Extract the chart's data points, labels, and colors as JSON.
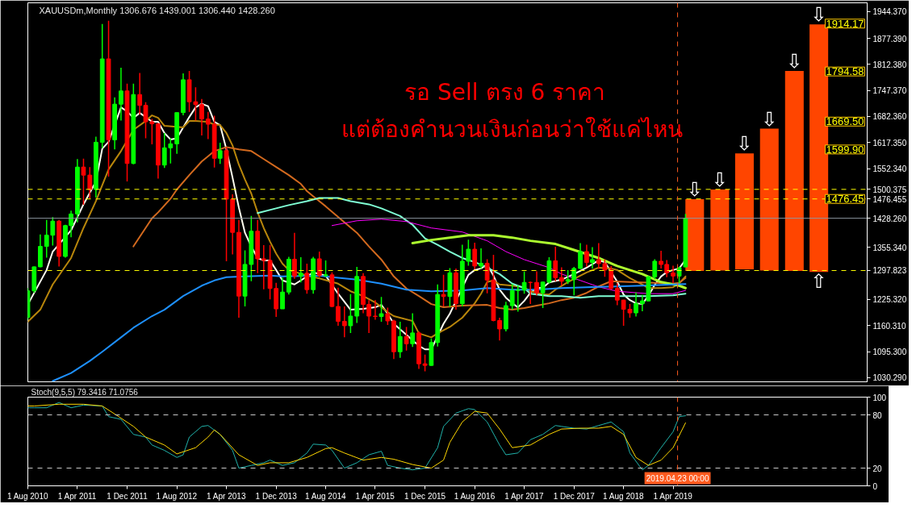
{
  "chart_data": [
    {
      "type": "candlestick",
      "title": "XAUUSDm,Monthly 1306.676 1439.001 1306.440 1428.260",
      "annotations": [
        "รอ Sell ตรง  6  ราคา",
        "แต่ต้องคำนวนเงินก่อนว่าใช้แค่ไหน",
        {
          "text": "⇩",
          "x": "2019-07-16",
          "y": 1476
        },
        {
          "text": "⇩",
          "x": "2019-11-16",
          "y": 1500
        },
        {
          "text": "⇩",
          "x": "2020-03-16",
          "y": 1590
        },
        {
          "text": "⇩",
          "x": "2020-07-16",
          "y": 1652
        },
        {
          "text": "⇩",
          "x": "2020-11-16",
          "y": 1796
        },
        {
          "text": "⇩",
          "x": "2021-03-16",
          "y": 1912
        },
        {
          "text": "⇧",
          "x": "2021-03-16",
          "y": 1294
        },
        {
          "text": "1914.17",
          "x": "2021-04-16",
          "y": 1914.17
        },
        {
          "text": "1794.58",
          "x": "2021-04-16",
          "y": 1794.58
        },
        {
          "text": "1669.50",
          "x": "2021-04-16",
          "y": 1669.5
        },
        {
          "text": "1599.90",
          "x": "2021-04-16",
          "y": 1599.9
        },
        {
          "text": "1476.45",
          "x": "2021-04-16",
          "y": 1476.45
        }
      ],
      "x": [
        "2010-08",
        "2010-09",
        "2010-10",
        "2010-11",
        "2010-12",
        "2011-01",
        "2011-02",
        "2011-03",
        "2011-04",
        "2011-05",
        "2011-06",
        "2011-07",
        "2011-08",
        "2011-09",
        "2011-10",
        "2011-11",
        "2011-12",
        "2012-01",
        "2012-02",
        "2012-03",
        "2012-04",
        "2012-05",
        "2012-06",
        "2012-07",
        "2012-08",
        "2012-09",
        "2012-10",
        "2012-11",
        "2012-12",
        "2013-01",
        "2013-02",
        "2013-03",
        "2013-04",
        "2013-05",
        "2013-06",
        "2013-07",
        "2013-08",
        "2013-09",
        "2013-10",
        "2013-11",
        "2013-12",
        "2014-01",
        "2014-02",
        "2014-03",
        "2014-04",
        "2014-05",
        "2014-06",
        "2014-07",
        "2014-08",
        "2014-09",
        "2014-10",
        "2014-11",
        "2014-12",
        "2015-01",
        "2015-02",
        "2015-03",
        "2015-04",
        "2015-05",
        "2015-06",
        "2015-07",
        "2015-08",
        "2015-09",
        "2015-10",
        "2015-11",
        "2015-12",
        "2016-01",
        "2016-02",
        "2016-03",
        "2016-04",
        "2016-05",
        "2016-06",
        "2016-07",
        "2016-08",
        "2016-09",
        "2016-10",
        "2016-11",
        "2016-12",
        "2017-01",
        "2017-02",
        "2017-03",
        "2017-04",
        "2017-05",
        "2017-06",
        "2017-07",
        "2017-08",
        "2017-09",
        "2017-10",
        "2017-11",
        "2017-12",
        "2018-01",
        "2018-02",
        "2018-03",
        "2018-04",
        "2018-05",
        "2018-06",
        "2018-07",
        "2018-08",
        "2018-09",
        "2018-10",
        "2018-11",
        "2018-12",
        "2019-01",
        "2019-02",
        "2019-03",
        "2019-04",
        "2019-05",
        "2019-06"
      ],
      "ohlc": [
        [
          1181,
          1254,
          1175,
          1247
        ],
        [
          1247,
          1308,
          1242,
          1307
        ],
        [
          1307,
          1388,
          1306,
          1358
        ],
        [
          1358,
          1424,
          1330,
          1386
        ],
        [
          1386,
          1431,
          1360,
          1421
        ],
        [
          1421,
          1424,
          1308,
          1333
        ],
        [
          1333,
          1412,
          1330,
          1410
        ],
        [
          1410,
          1447,
          1381,
          1439
        ],
        [
          1439,
          1576,
          1418,
          1556
        ],
        [
          1556,
          1577,
          1462,
          1536
        ],
        [
          1536,
          1556,
          1478,
          1500
        ],
        [
          1500,
          1632,
          1480,
          1618
        ],
        [
          1618,
          1913,
          1603,
          1826
        ],
        [
          1826,
          1921,
          1532,
          1624
        ],
        [
          1624,
          1730,
          1600,
          1713
        ],
        [
          1713,
          1804,
          1672,
          1746
        ],
        [
          1746,
          1764,
          1520,
          1565
        ],
        [
          1565,
          1764,
          1563,
          1737
        ],
        [
          1737,
          1791,
          1687,
          1710
        ],
        [
          1710,
          1718,
          1628,
          1669
        ],
        [
          1669,
          1676,
          1613,
          1664
        ],
        [
          1664,
          1666,
          1527,
          1561
        ],
        [
          1561,
          1641,
          1554,
          1604
        ],
        [
          1604,
          1628,
          1565,
          1614
        ],
        [
          1614,
          1692,
          1589,
          1692
        ],
        [
          1692,
          1790,
          1685,
          1774
        ],
        [
          1774,
          1796,
          1694,
          1719
        ],
        [
          1719,
          1755,
          1672,
          1712
        ],
        [
          1712,
          1726,
          1635,
          1676
        ],
        [
          1676,
          1694,
          1626,
          1663
        ],
        [
          1663,
          1684,
          1555,
          1578
        ],
        [
          1578,
          1617,
          1564,
          1597
        ],
        [
          1597,
          1605,
          1321,
          1476
        ],
        [
          1476,
          1488,
          1338,
          1393
        ],
        [
          1393,
          1424,
          1180,
          1234
        ],
        [
          1234,
          1348,
          1208,
          1313
        ],
        [
          1313,
          1434,
          1271,
          1396
        ],
        [
          1396,
          1424,
          1291,
          1327
        ],
        [
          1327,
          1361,
          1251,
          1323
        ],
        [
          1323,
          1361,
          1226,
          1253
        ],
        [
          1253,
          1267,
          1182,
          1202
        ],
        [
          1202,
          1280,
          1202,
          1244
        ],
        [
          1244,
          1332,
          1238,
          1326
        ],
        [
          1326,
          1392,
          1277,
          1284
        ],
        [
          1284,
          1331,
          1268,
          1291
        ],
        [
          1291,
          1315,
          1240,
          1250
        ],
        [
          1250,
          1332,
          1240,
          1327
        ],
        [
          1327,
          1345,
          1281,
          1285
        ],
        [
          1285,
          1323,
          1281,
          1287
        ],
        [
          1287,
          1293,
          1206,
          1208
        ],
        [
          1208,
          1255,
          1160,
          1171
        ],
        [
          1171,
          1208,
          1131,
          1160
        ],
        [
          1160,
          1239,
          1142,
          1184
        ],
        [
          1184,
          1307,
          1167,
          1283
        ],
        [
          1283,
          1291,
          1191,
          1213
        ],
        [
          1213,
          1224,
          1142,
          1184
        ],
        [
          1184,
          1224,
          1175,
          1183
        ],
        [
          1183,
          1232,
          1170,
          1190
        ],
        [
          1190,
          1205,
          1162,
          1172
        ],
        [
          1172,
          1175,
          1077,
          1095
        ],
        [
          1095,
          1170,
          1080,
          1133
        ],
        [
          1133,
          1157,
          1098,
          1115
        ],
        [
          1115,
          1191,
          1107,
          1142
        ],
        [
          1142,
          1146,
          1052,
          1065
        ],
        [
          1065,
          1088,
          1046,
          1061
        ],
        [
          1061,
          1128,
          1060,
          1118
        ],
        [
          1118,
          1263,
          1108,
          1238
        ],
        [
          1238,
          1287,
          1208,
          1233
        ],
        [
          1233,
          1304,
          1207,
          1292
        ],
        [
          1292,
          1303,
          1200,
          1215
        ],
        [
          1215,
          1362,
          1208,
          1321
        ],
        [
          1321,
          1375,
          1310,
          1351
        ],
        [
          1351,
          1367,
          1301,
          1309
        ],
        [
          1309,
          1353,
          1302,
          1316
        ],
        [
          1316,
          1326,
          1241,
          1274
        ],
        [
          1274,
          1337,
          1171,
          1173
        ],
        [
          1173,
          1180,
          1123,
          1152
        ],
        [
          1152,
          1220,
          1146,
          1210
        ],
        [
          1210,
          1264,
          1200,
          1248
        ],
        [
          1248,
          1261,
          1195,
          1249
        ],
        [
          1249,
          1295,
          1240,
          1268
        ],
        [
          1268,
          1270,
          1214,
          1268
        ],
        [
          1268,
          1296,
          1236,
          1242
        ],
        [
          1242,
          1270,
          1204,
          1269
        ],
        [
          1269,
          1331,
          1265,
          1322
        ],
        [
          1322,
          1357,
          1271,
          1280
        ],
        [
          1280,
          1306,
          1260,
          1271
        ],
        [
          1271,
          1299,
          1264,
          1275
        ],
        [
          1275,
          1307,
          1236,
          1303
        ],
        [
          1303,
          1366,
          1302,
          1345
        ],
        [
          1345,
          1362,
          1307,
          1318
        ],
        [
          1318,
          1356,
          1303,
          1325
        ],
        [
          1325,
          1366,
          1302,
          1315
        ],
        [
          1315,
          1326,
          1282,
          1299
        ],
        [
          1299,
          1309,
          1250,
          1253
        ],
        [
          1253,
          1266,
          1211,
          1224
        ],
        [
          1224,
          1225,
          1160,
          1201
        ],
        [
          1201,
          1214,
          1180,
          1192
        ],
        [
          1192,
          1243,
          1183,
          1215
        ],
        [
          1215,
          1237,
          1196,
          1222
        ],
        [
          1222,
          1284,
          1221,
          1282
        ],
        [
          1282,
          1326,
          1276,
          1321
        ],
        [
          1321,
          1347,
          1303,
          1313
        ],
        [
          1313,
          1324,
          1281,
          1292
        ],
        [
          1292,
          1310,
          1266,
          1284
        ],
        [
          1284,
          1306,
          1266,
          1305
        ],
        [
          1306.676,
          1439.001,
          1306.44,
          1428.26
        ]
      ],
      "colors": [
        "#00ff00",
        "#00ff00",
        "#00ff00",
        "#00ff00",
        "#00ff00",
        "#ff0000",
        "#00ff00",
        "#00ff00",
        "#00ff00",
        "#ff0000",
        "#ff0000",
        "#00ff00",
        "#00ff00",
        "#ff0000",
        "#00ff00",
        "#00ff00",
        "#ff0000",
        "#00ff00",
        "#ff0000",
        "#ff0000",
        "#ff0000",
        "#ff0000",
        "#00ff00",
        "#00ff00",
        "#00ff00",
        "#00ff00",
        "#ff0000",
        "#ff0000",
        "#ff0000",
        "#ff0000",
        "#ff0000",
        "#00ff00",
        "#ff0000",
        "#ff0000",
        "#ff0000",
        "#00ff00",
        "#00ff00",
        "#ff0000",
        "#ff0000",
        "#ff0000",
        "#ff0000",
        "#00ff00",
        "#00ff00",
        "#ff0000",
        "#00ff00",
        "#ff0000",
        "#00ff00",
        "#ff0000",
        "#00ff00",
        "#ff0000",
        "#ff0000",
        "#ff0000",
        "#00ff00",
        "#00ff00",
        "#ff0000",
        "#ff0000",
        "#ff0000",
        "#00ff00",
        "#ff0000",
        "#ff0000",
        "#00ff00",
        "#ff0000",
        "#00ff00",
        "#ff0000",
        "#ff0000",
        "#00ff00",
        "#00ff00",
        "#ff0000",
        "#00ff00",
        "#ff0000",
        "#00ff00",
        "#00ff00",
        "#ff0000",
        "#00ff00",
        "#ff0000",
        "#ff0000",
        "#ff0000",
        "#00ff00",
        "#00ff00",
        "#00ff00",
        "#00ff00",
        "#ff0000",
        "#ff0000",
        "#00ff00",
        "#00ff00",
        "#ff0000",
        "#ff0000",
        "#00ff00",
        "#00ff00",
        "#00ff00",
        "#ff0000",
        "#00ff00",
        "#ff0000",
        "#ff0000",
        "#ff0000",
        "#ff0000",
        "#ff0000",
        "#ff0000",
        "#00ff00",
        "#00ff00",
        "#00ff00",
        "#00ff00",
        "#ff0000",
        "#ff0000",
        "#ff0000",
        "#00ff00",
        "#00ff00"
      ],
      "series": [
        {
          "type": "line",
          "color": "#fffff0",
          "x": [
            "2010-08",
            "2010-11",
            "2010-12",
            "2011-03",
            "2011-05",
            "2011-07",
            "2011-08",
            "2011-09",
            "2011-11",
            "2011-12",
            "2012-01",
            "2012-02",
            "2012-03",
            "2012-04",
            "2012-05",
            "2012-06",
            "2012-07",
            "2012-08",
            "2012-09",
            "2012-10",
            "2012-11",
            "2012-12",
            "2013-01",
            "2013-02",
            "2013-03",
            "2013-04",
            "2013-05",
            "2013-06",
            "2013-07",
            "2013-08",
            "2013-09",
            "2013-10",
            "2013-11",
            "2013-12",
            "2014-01",
            "2014-03",
            "2014-05",
            "2014-06",
            "2014-08",
            "2014-10",
            "2014-12",
            "2015-02",
            "2015-04",
            "2015-05",
            "2015-06",
            "2015-07",
            "2015-09",
            "2015-11",
            "2015-12",
            "2016-01",
            "2016-03",
            "2016-04",
            "2016-05",
            "2016-07",
            "2016-08",
            "2016-09",
            "2016-10",
            "2016-11",
            "2016-12",
            "2017-01",
            "2017-02",
            "2017-03",
            "2017-04",
            "2017-05",
            "2017-06",
            "2017-07",
            "2017-08",
            "2017-10",
            "2017-12",
            "2018-02",
            "2018-04",
            "2018-05",
            "2018-07",
            "2018-08",
            "2018-09",
            "2018-10",
            "2018-11",
            "2018-12",
            "2019-01",
            "2019-02",
            "2019-03",
            "2019-04",
            "2019-05",
            "2019-06"
          ],
          "values": [
            1213,
            1299,
            1345,
            1398,
            1463,
            1520,
            1602,
            1619,
            1705,
            1695,
            1679,
            1691,
            1681,
            1669,
            1669,
            1641,
            1625,
            1628,
            1655,
            1681,
            1705,
            1714,
            1708,
            1669,
            1661,
            1600,
            1530,
            1455,
            1392,
            1358,
            1329,
            1323,
            1323,
            1299,
            1273,
            1263,
            1283,
            1293,
            1285,
            1240,
            1200,
            1202,
            1206,
            1212,
            1190,
            1165,
            1137,
            1110,
            1101,
            1101,
            1165,
            1190,
            1222,
            1287,
            1299,
            1303,
            1313,
            1285,
            1250,
            1230,
            1216,
            1206,
            1222,
            1242,
            1254,
            1255,
            1268,
            1275,
            1289,
            1305,
            1323,
            1319,
            1270,
            1238,
            1224,
            1216,
            1214,
            1235,
            1262,
            1283,
            1294,
            1299,
            1303,
            1325
          ]
        },
        {
          "type": "line",
          "color": "#b8860b",
          "x": [
            "2010-08",
            "2010-10",
            "2010-12",
            "2011-03",
            "2011-05",
            "2011-07",
            "2011-08",
            "2011-09",
            "2011-11",
            "2012-01",
            "2012-03",
            "2012-04",
            "2012-05",
            "2012-06",
            "2012-09",
            "2012-10",
            "2012-11",
            "2013-01",
            "2013-02",
            "2013-03",
            "2013-04",
            "2013-05",
            "2013-06",
            "2013-07",
            "2013-08",
            "2013-09",
            "2013-10",
            "2013-11",
            "2013-12",
            "2014-01",
            "2014-02",
            "2014-04",
            "2014-05",
            "2014-07",
            "2014-10",
            "2014-12",
            "2015-02",
            "2015-04",
            "2015-06",
            "2015-07",
            "2015-10",
            "2015-11",
            "2016-01",
            "2016-02",
            "2016-04",
            "2016-06",
            "2016-08",
            "2016-09",
            "2016-10",
            "2016-11",
            "2016-12",
            "2017-02",
            "2017-04",
            "2017-05",
            "2017-07",
            "2017-08",
            "2017-09",
            "2017-11",
            "2018-01",
            "2018-02",
            "2018-04",
            "2018-06",
            "2018-07",
            "2018-09",
            "2018-11",
            "2018-12",
            "2019-02",
            "2019-04",
            "2019-05",
            "2019-06"
          ],
          "values": [
            1170,
            1200,
            1263,
            1329,
            1404,
            1471,
            1511,
            1550,
            1596,
            1649,
            1671,
            1685,
            1679,
            1659,
            1655,
            1671,
            1671,
            1669,
            1662,
            1661,
            1641,
            1610,
            1562,
            1525,
            1490,
            1443,
            1404,
            1370,
            1340,
            1315,
            1299,
            1290,
            1285,
            1278,
            1265,
            1246,
            1234,
            1218,
            1194,
            1184,
            1172,
            1141,
            1131,
            1141,
            1157,
            1180,
            1216,
            1240,
            1269,
            1273,
            1263,
            1260,
            1256,
            1246,
            1238,
            1238,
            1250,
            1269,
            1285,
            1293,
            1305,
            1303,
            1299,
            1279,
            1263,
            1254,
            1254,
            1256,
            1266,
            1283
          ]
        },
        {
          "type": "line",
          "color": "#d2691e",
          "x": [
            "2012-01",
            "2012-04",
            "2012-05",
            "2012-07",
            "2012-08",
            "2012-10",
            "2012-12",
            "2013-02",
            "2013-04",
            "2013-06",
            "2013-08",
            "2013-10",
            "2013-12",
            "2014-02",
            "2014-04",
            "2014-05",
            "2014-06",
            "2014-08",
            "2014-11",
            "2015-01",
            "2015-03",
            "2015-05",
            "2015-07",
            "2015-09",
            "2015-11",
            "2016-01",
            "2016-03",
            "2016-06",
            "2016-10",
            "2016-12",
            "2017-02",
            "2017-04",
            "2017-06",
            "2017-08",
            "2017-10",
            "2017-12",
            "2018-02",
            "2018-04",
            "2018-06",
            "2018-09",
            "2019-01",
            "2019-04",
            "2019-05",
            "2019-06"
          ],
          "values": [
            1358,
            1428,
            1443,
            1477,
            1500,
            1536,
            1570,
            1596,
            1606,
            1600,
            1596,
            1576,
            1556,
            1536,
            1514,
            1496,
            1483,
            1458,
            1418,
            1392,
            1358,
            1325,
            1283,
            1253,
            1234,
            1214,
            1206,
            1210,
            1212,
            1204,
            1200,
            1204,
            1210,
            1216,
            1224,
            1230,
            1242,
            1258,
            1271,
            1269,
            1267,
            1265,
            1267,
            1279
          ]
        },
        {
          "type": "line",
          "color": "#7fffd4",
          "x": [
            "2013-09",
            "2013-12",
            "2014-02",
            "2014-05",
            "2014-07",
            "2014-10",
            "2014-12",
            "2015-03",
            "2015-05",
            "2015-08",
            "2015-10",
            "2015-12",
            "2016-02",
            "2016-04",
            "2016-06",
            "2016-08",
            "2016-10",
            "2016-12",
            "2017-02",
            "2017-04",
            "2017-05",
            "2017-08",
            "2017-10",
            "2018-01",
            "2018-04",
            "2018-08",
            "2018-12",
            "2019-04",
            "2019-06"
          ],
          "values": [
            1441,
            1453,
            1461,
            1471,
            1479,
            1479,
            1471,
            1463,
            1453,
            1434,
            1412,
            1378,
            1362,
            1345,
            1329,
            1319,
            1305,
            1289,
            1265,
            1254,
            1240,
            1234,
            1234,
            1230,
            1234,
            1234,
            1234,
            1236,
            1240
          ]
        },
        {
          "type": "line",
          "color": "#ff00ff",
          "x": [
            "2014-09",
            "2015-01",
            "2015-05",
            "2015-09",
            "2016-01",
            "2016-06",
            "2016-10",
            "2017-01",
            "2017-04",
            "2017-08",
            "2017-10",
            "2018-01",
            "2018-04",
            "2018-07",
            "2018-12",
            "2019-04",
            "2019-06"
          ],
          "values": [
            1410,
            1422,
            1426,
            1420,
            1404,
            1394,
            1372,
            1345,
            1325,
            1305,
            1289,
            1273,
            1257,
            1246,
            1240,
            1240,
            1248
          ]
        },
        {
          "type": "line",
          "color": "#adff2f",
          "x": [
            "2015-10",
            "2016-01",
            "2016-05",
            "2016-07",
            "2016-11",
            "2017-02",
            "2017-05",
            "2017-09",
            "2017-12",
            "2018-04",
            "2018-07",
            "2018-11",
            "2019-02",
            "2019-05",
            "2019-06"
          ],
          "values": [
            1366,
            1374,
            1382,
            1386,
            1386,
            1380,
            1372,
            1364,
            1349,
            1329,
            1309,
            1289,
            1269,
            1260,
            1254
          ]
        },
        {
          "type": "line",
          "color": "#1e90ff",
          "x": [
            "2010-12",
            "2011-03",
            "2011-06",
            "2011-08",
            "2011-11",
            "2012-01",
            "2012-04",
            "2012-06",
            "2012-09",
            "2012-12",
            "2013-02",
            "2013-04",
            "2013-07",
            "2013-11",
            "2014-01",
            "2014-07",
            "2014-09",
            "2015-01",
            "2015-05",
            "2015-09",
            "2016-01",
            "2016-06",
            "2016-10",
            "2017-02",
            "2017-06",
            "2017-10",
            "2018-04",
            "2018-11",
            "2019-06"
          ],
          "values": [
            1022,
            1042,
            1072,
            1095,
            1131,
            1155,
            1184,
            1200,
            1234,
            1260,
            1273,
            1281,
            1283,
            1285,
            1283,
            1285,
            1281,
            1275,
            1265,
            1250,
            1246,
            1248,
            1254,
            1250,
            1250,
            1254,
            1257,
            1260,
            1264
          ]
        },
        {
          "type": "bar",
          "color": "#ff4500",
          "x": [
            "2019-07-16",
            "2019-11-16",
            "2020-03-16",
            "2020-07-16",
            "2020-11-16",
            "2021-03-16"
          ],
          "base": [
            1297,
            1298,
            1301,
            1298,
            1297,
            1294
          ],
          "values": [
            179,
            202,
            289,
            354,
            499,
            618
          ]
        }
      ],
      "xlim": [
        "2010-08",
        "2021-11-08"
      ],
      "ylim": [
        1020,
        1966
      ],
      "yticks": [
        {
          "value": 1030.29,
          "label": "1030.290"
        },
        {
          "value": 1095.3,
          "label": "1095.300"
        },
        {
          "value": 1160.31,
          "label": "1160.310"
        },
        {
          "value": 1225.32,
          "label": "1225.320"
        },
        {
          "value": 1355.34,
          "label": "1355.340"
        },
        {
          "value": 1552.34,
          "label": "1552.340"
        },
        {
          "value": 1617.35,
          "label": "1617.350"
        },
        {
          "value": 1682.36,
          "label": "1682.360"
        },
        {
          "value": 1747.37,
          "label": "1747.370"
        },
        {
          "value": 1812.38,
          "label": "1812.380"
        },
        {
          "value": 1877.39,
          "label": "1877.390"
        },
        {
          "value": 1944.37,
          "label": "1944.370"
        }
      ],
      "tick_labels": "y",
      "ref_lines": [
        {
          "axis": "y",
          "value": 1500.375,
          "label": "1500.375",
          "color": "#ffff00",
          "line_style": "dashed"
        },
        {
          "axis": "y",
          "value": 1476.455,
          "label": "1476.455",
          "color": "#ffff00",
          "line_style": "dashed"
        },
        {
          "axis": "y",
          "value": 1428.26,
          "label": "1428.260",
          "color": "#8c96a0"
        },
        {
          "axis": "y",
          "value": 1297.823,
          "label": "1297.823",
          "color": "#ffff00",
          "line_style": "dashed"
        },
        {
          "axis": "x",
          "value": "2019-04-23",
          "color": "#ff5a1e",
          "line_style": "dashed"
        }
      ]
    },
    {
      "type": "line",
      "title": "Stoch(9,5,5) 79.3416 71.0756",
      "series": [
        {
          "color": "#20b2aa",
          "x": [
            "2010-08",
            "2010-09",
            "2010-11",
            "2011-01",
            "2011-03",
            "2011-05",
            "2011-08",
            "2011-09",
            "2011-11",
            "2012-01",
            "2012-03",
            "2012-04",
            "2012-06",
            "2012-08",
            "2012-09",
            "2012-10",
            "2012-12",
            "2013-01",
            "2013-03",
            "2013-05",
            "2013-06",
            "2013-08",
            "2013-10",
            "2013-11",
            "2014-01",
            "2014-03",
            "2014-05",
            "2014-06",
            "2014-08",
            "2014-09",
            "2014-11",
            "2015-01",
            "2015-03",
            "2015-05",
            "2015-06",
            "2015-08",
            "2015-10",
            "2015-12",
            "2016-02",
            "2016-03",
            "2016-05",
            "2016-07",
            "2016-08",
            "2016-10",
            "2016-12",
            "2017-01",
            "2017-03",
            "2017-05",
            "2017-07",
            "2017-09",
            "2017-10",
            "2017-12",
            "2018-02",
            "2018-04",
            "2018-06",
            "2018-08",
            "2018-09",
            "2018-11",
            "2018-12",
            "2019-02",
            "2019-04",
            "2019-05",
            "2019-06"
          ],
          "values": [
            88,
            88,
            88,
            94,
            88,
            91,
            90,
            78,
            75,
            58,
            55,
            46,
            40,
            32,
            35,
            55,
            67,
            68,
            58,
            40,
            20,
            23,
            26,
            29,
            23,
            26,
            37,
            47,
            46,
            40,
            20,
            26,
            35,
            39,
            23,
            20,
            18,
            20,
            43,
            67,
            82,
            87,
            86,
            72,
            46,
            35,
            37,
            52,
            58,
            68,
            67,
            65,
            64,
            68,
            72,
            61,
            37,
            18,
            23,
            43,
            61,
            78,
            79
          ]
        },
        {
          "color": "#ffd700",
          "x": [
            "2010-08",
            "2010-09",
            "2011-01",
            "2011-05",
            "2011-08",
            "2011-10",
            "2012-01",
            "2012-03",
            "2012-06",
            "2012-08",
            "2012-11",
            "2013-01",
            "2013-02",
            "2013-03",
            "2013-06",
            "2013-09",
            "2013-11",
            "2014-02",
            "2014-05",
            "2014-08",
            "2014-09",
            "2014-11",
            "2015-02",
            "2015-05",
            "2015-07",
            "2015-10",
            "2016-01",
            "2016-03",
            "2016-04",
            "2016-06",
            "2016-08",
            "2016-10",
            "2016-12",
            "2017-02",
            "2017-05",
            "2017-08",
            "2017-10",
            "2018-01",
            "2018-04",
            "2018-06",
            "2018-08",
            "2018-10",
            "2018-12",
            "2019-02",
            "2019-04",
            "2019-06"
          ],
          "values": [
            90,
            90,
            92,
            92,
            90,
            81,
            67,
            55,
            46,
            36,
            43,
            55,
            63,
            58,
            35,
            23,
            26,
            26,
            32,
            42,
            43,
            37,
            29,
            32,
            30,
            24,
            20,
            29,
            49,
            72,
            84,
            82,
            64,
            43,
            46,
            58,
            64,
            65,
            65,
            67,
            58,
            32,
            23,
            29,
            43,
            71
          ]
        }
      ],
      "xlim": [
        "2010-08",
        "2021-11-08"
      ],
      "ylim": [
        0,
        100
      ],
      "yticks": [
        0,
        20,
        80,
        100
      ],
      "xticks": [
        {
          "value": "2010-08",
          "label": "1 Aug 2010"
        },
        {
          "value": "2011-04",
          "label": "1 Apr 2011"
        },
        {
          "value": "2011-12",
          "label": "1 Dec 2011"
        },
        {
          "value": "2012-08",
          "label": "1 Aug 2012"
        },
        {
          "value": "2013-04",
          "label": "1 Apr 2013"
        },
        {
          "value": "2013-12",
          "label": "1 Dec 2013"
        },
        {
          "value": "2014-08",
          "label": "1 Aug 2014"
        },
        {
          "value": "2015-04",
          "label": "1 Apr 2015"
        },
        {
          "value": "2015-12",
          "label": "1 Dec 2015"
        },
        {
          "value": "2016-08",
          "label": "1 Aug 2016"
        },
        {
          "value": "2017-04",
          "label": "1 Apr 2017"
        },
        {
          "value": "2017-12",
          "label": "1 Dec 2017"
        },
        {
          "value": "2018-08",
          "label": "1 Aug 2018"
        },
        {
          "value": "2019-04",
          "label": "1 Apr 2019"
        }
      ],
      "ref_lines": [
        {
          "axis": "y",
          "value": 20,
          "color": "#c8c8c8",
          "line_style": "dashed"
        },
        {
          "axis": "y",
          "value": 80,
          "color": "#c8c8c8",
          "line_style": "dashed"
        },
        {
          "axis": "x",
          "value": "2019-04-23",
          "label": "2019.04.23 00:00",
          "color": "#ff5a1e",
          "line_style": "dashed"
        }
      ]
    }
  ]
}
